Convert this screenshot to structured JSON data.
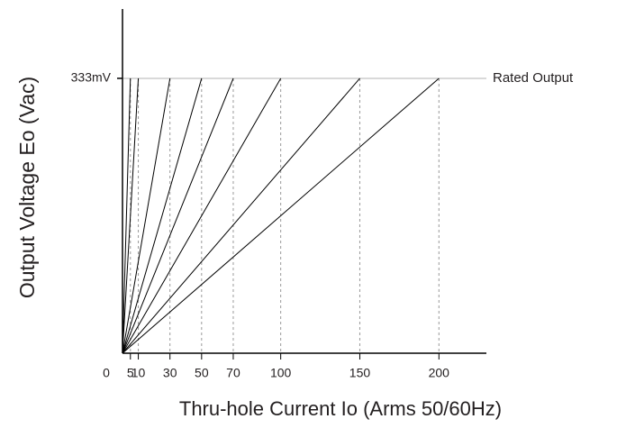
{
  "chart_data": {
    "type": "line",
    "x_label": "Thru-hole Current Io (Arms 50/60Hz)",
    "y_label": "Output Voltage Eo (Vac)",
    "xlim": [
      0,
      230
    ],
    "xticks": [
      0,
      5,
      10,
      30,
      50,
      70,
      100,
      150,
      200
    ],
    "ylim": [
      0,
      417
    ],
    "yticks": [
      {
        "value": 333,
        "label": "333mV"
      }
    ],
    "reference_line": {
      "value": 333,
      "label": "Rated Output",
      "color": "#b3b3b3"
    },
    "color": "#000000"
  }
}
